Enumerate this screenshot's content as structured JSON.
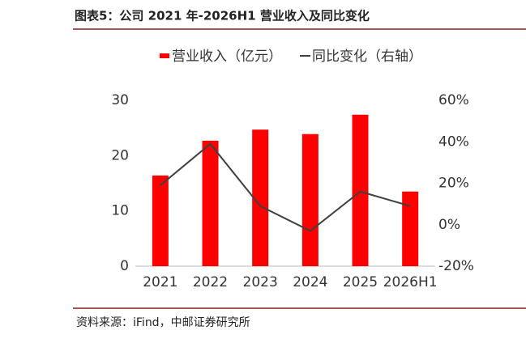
{
  "chart_data": {
    "type": "bar",
    "title": "图表5：公司 2021 年-2026H1 营业收入及同比变化",
    "source": "资料来源：iFind，中邮证券研究所",
    "categories": [
      "2021",
      "2022",
      "2023",
      "2024",
      "2025",
      "2026H1"
    ],
    "series": [
      {
        "name": "营业收入（亿元）",
        "type": "bar",
        "color": "#ff0000",
        "values": [
          16.4,
          22.7,
          24.7,
          23.9,
          27.4,
          13.5
        ]
      },
      {
        "name": "同比变化（右轴）",
        "type": "line",
        "axis": "y2",
        "color": "#404040",
        "values": [
          19,
          39,
          9,
          -3,
          16,
          9
        ]
      }
    ],
    "ylim": [
      0,
      30
    ],
    "yticks": [
      0,
      10,
      20,
      30
    ],
    "y2lim": [
      -20,
      60
    ],
    "y2ticks": [
      {
        "value": -20,
        "label": "-20%"
      },
      {
        "value": 0,
        "label": "0%"
      },
      {
        "value": 20,
        "label": "20%"
      },
      {
        "value": 40,
        "label": "40%"
      },
      {
        "value": 60,
        "label": "60%"
      }
    ],
    "legend": "top",
    "grid": false
  }
}
